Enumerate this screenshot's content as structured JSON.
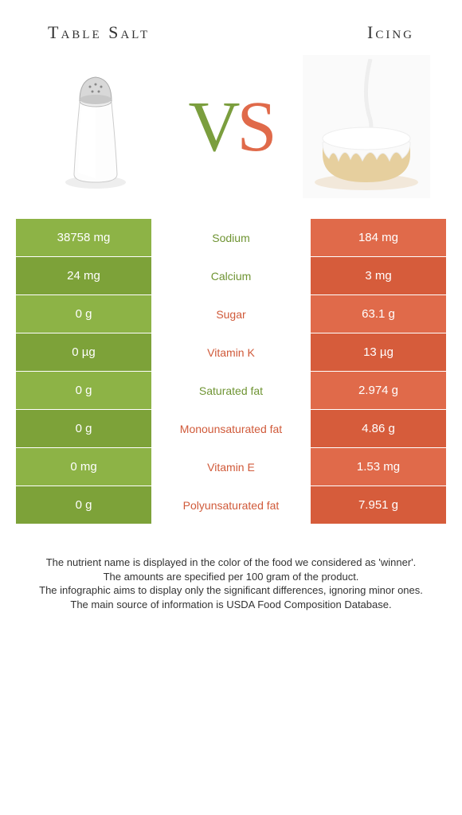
{
  "colors": {
    "green": "#8db346",
    "green_dark": "#7da239",
    "orange": "#e06a4a",
    "orange_dark": "#d65c3b",
    "green_text": "#6f9433",
    "orange_text": "#d05a3a"
  },
  "header": {
    "left": "Table Salt",
    "right": "Icing"
  },
  "vs": {
    "v": "V",
    "s": "S"
  },
  "rows": [
    {
      "left": "38758 mg",
      "label": "Sodium",
      "right": "184 mg",
      "winner": "left"
    },
    {
      "left": "24 mg",
      "label": "Calcium",
      "right": "3 mg",
      "winner": "left"
    },
    {
      "left": "0 g",
      "label": "Sugar",
      "right": "63.1 g",
      "winner": "right"
    },
    {
      "left": "0 µg",
      "label": "Vitamin K",
      "right": "13 µg",
      "winner": "right"
    },
    {
      "left": "0 g",
      "label": "Saturated fat",
      "right": "2.974 g",
      "winner": "left"
    },
    {
      "left": "0 g",
      "label": "Monounsaturated fat",
      "right": "4.86 g",
      "winner": "right"
    },
    {
      "left": "0 mg",
      "label": "Vitamin E",
      "right": "1.53 mg",
      "winner": "right"
    },
    {
      "left": "0 g",
      "label": "Polyunsaturated fat",
      "right": "7.951 g",
      "winner": "right"
    }
  ],
  "footer": {
    "l1": "The nutrient name is displayed in the color of the food we considered as 'winner'.",
    "l2": "The amounts are specified per 100 gram of the product.",
    "l3": "The infographic aims to display only the significant differences, ignoring minor ones.",
    "l4": "The main source of information is USDA Food Composition Database."
  }
}
